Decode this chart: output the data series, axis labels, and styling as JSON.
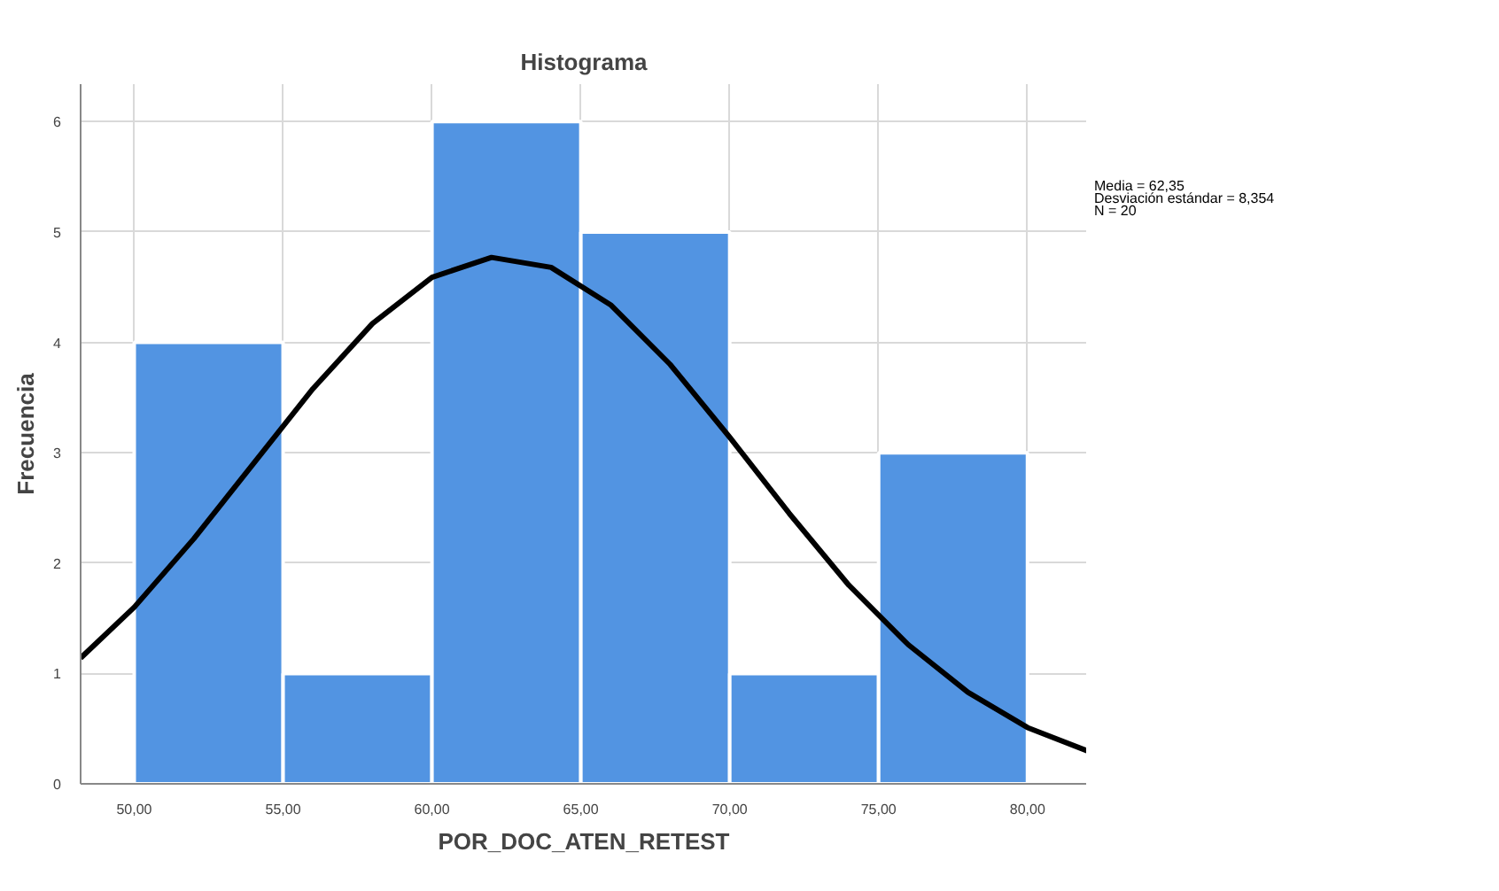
{
  "chart_data": {
    "type": "histogram",
    "title": "Histograma",
    "xlabel": "POR_DOC_ATEN_RETEST",
    "ylabel": "Frecuencia",
    "bins": [
      50,
      55,
      60,
      65,
      70,
      75,
      80
    ],
    "values": [
      4,
      1,
      6,
      5,
      1,
      3
    ],
    "color": "#5294e2",
    "series": [
      {
        "type": "line",
        "color": "#000000",
        "x": [
          48.2,
          50,
          52,
          54,
          56,
          58,
          60,
          62,
          64,
          66,
          68,
          70,
          72,
          74,
          76,
          78,
          80,
          82
        ],
        "values": [
          1.14,
          1.6,
          2.22,
          2.9,
          3.58,
          4.17,
          4.59,
          4.77,
          4.68,
          4.34,
          3.8,
          3.14,
          2.45,
          1.8,
          1.26,
          0.83,
          0.51,
          0.3
        ]
      }
    ],
    "xlim": [
      48.2,
      82
    ],
    "ylim": [
      0,
      6.34
    ],
    "xticks": [
      {
        "value": 50,
        "label": "50,00"
      },
      {
        "value": 55,
        "label": "55,00"
      },
      {
        "value": 60,
        "label": "60,00"
      },
      {
        "value": 65,
        "label": "65,00"
      },
      {
        "value": 70,
        "label": "70,00"
      },
      {
        "value": 75,
        "label": "75,00"
      },
      {
        "value": 80,
        "label": "80,00"
      }
    ],
    "yticks": [
      0,
      1,
      2,
      3,
      4,
      5,
      6
    ],
    "grid": true,
    "annotations": [
      "Media = 62,35",
      "Desviación estándar = 8,354",
      "N = 20"
    ]
  }
}
